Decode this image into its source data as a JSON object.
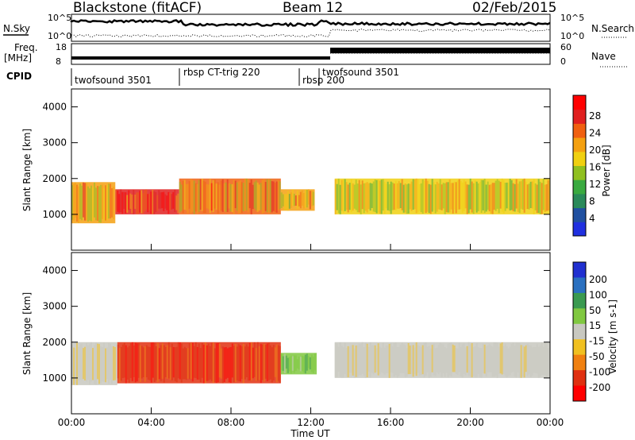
{
  "header": {
    "station": "Blackstone (fitACF)",
    "beam": "Beam 12",
    "date": "02/Feb/2015"
  },
  "noise_panel": {
    "left_label": "N.Sky",
    "right_label": "N.Search",
    "left_ticks": [
      "10^5",
      "10^0"
    ],
    "right_ticks": [
      "10^5",
      "10^0"
    ]
  },
  "freq_panel": {
    "left_label_line1": "Freq.",
    "left_label_line2": "[MHz]",
    "left_ticks": [
      "18",
      "8"
    ],
    "right_label": "Nave",
    "right_ticks": [
      "60",
      "0"
    ]
  },
  "cpid": {
    "label": "CPID",
    "segments": [
      {
        "name": "twofsound 3501",
        "start_hour": 0.0
      },
      {
        "name": "rbsp CT-trig 220",
        "start_hour": 5.4
      },
      {
        "name": "rbsp 200",
        "start_hour": 12.0
      },
      {
        "name": "twofsound 3501",
        "start_hour": 12.95
      }
    ]
  },
  "x_axis": {
    "label": "Time UT",
    "ticks": [
      "00:00",
      "04:00",
      "08:00",
      "12:00",
      "16:00",
      "20:00",
      "00:00"
    ],
    "range_hours": [
      0,
      24
    ]
  },
  "power_panel": {
    "ylabel": "Slant Range [km]",
    "yticks": [
      "1000",
      "2000",
      "3000",
      "4000"
    ],
    "colorbar_label": "Power [dB]",
    "colorbar_ticks": [
      "28",
      "24",
      "20",
      "16",
      "12",
      "8",
      "4"
    ],
    "colors": [
      "#2030e0",
      "#2050a0",
      "#2a8a5a",
      "#3aaa40",
      "#90c020",
      "#f0d010",
      "#f4a010",
      "#f06010",
      "#e02020",
      "#ff0000"
    ]
  },
  "velocity_panel": {
    "ylabel": "Slant Range [km]",
    "yticks": [
      "1000",
      "2000",
      "3000",
      "4000"
    ],
    "colorbar_label": "Velocity [m s-1]",
    "colorbar_ticks": [
      "200",
      "100",
      "50",
      "15",
      "-15",
      "-50",
      "-100",
      "-200"
    ],
    "colors": [
      "#2030d0",
      "#2a70c0",
      "#3a9a50",
      "#80c840",
      "#c8c8c0",
      "#f0c020",
      "#f08010",
      "#e03010",
      "#ff0000"
    ]
  },
  "chart_data": {
    "type": "heatmap",
    "xlabel": "Time UT",
    "ylabel": "Slant Range [km]",
    "xlim": [
      0,
      24
    ],
    "ylim": [
      0,
      4500
    ],
    "power_bands": [
      {
        "t_start": 0.0,
        "t_end": 2.2,
        "range_low": 750,
        "range_high": 1900,
        "power_db": 20
      },
      {
        "t_start": 2.2,
        "t_end": 5.4,
        "range_low": 1000,
        "range_high": 1700,
        "power_db": 26
      },
      {
        "t_start": 5.4,
        "t_end": 10.5,
        "range_low": 1000,
        "range_high": 2000,
        "power_db": 22
      },
      {
        "t_start": 10.5,
        "t_end": 12.2,
        "range_low": 1100,
        "range_high": 1700,
        "power_db": 20
      },
      {
        "t_start": 13.2,
        "t_end": 24.0,
        "range_low": 1000,
        "range_high": 2000,
        "power_db": 18
      }
    ],
    "velocity_bands": [
      {
        "t_start": 0.0,
        "t_end": 2.3,
        "range_low": 800,
        "range_high": 2000,
        "velocity": -10
      },
      {
        "t_start": 2.3,
        "t_end": 10.5,
        "range_low": 850,
        "range_high": 2000,
        "velocity": -150
      },
      {
        "t_start": 10.5,
        "t_end": 12.3,
        "range_low": 1100,
        "range_high": 1700,
        "velocity": 40
      },
      {
        "t_start": 13.2,
        "t_end": 24.0,
        "range_low": 1000,
        "range_high": 2000,
        "velocity": -5
      }
    ]
  }
}
